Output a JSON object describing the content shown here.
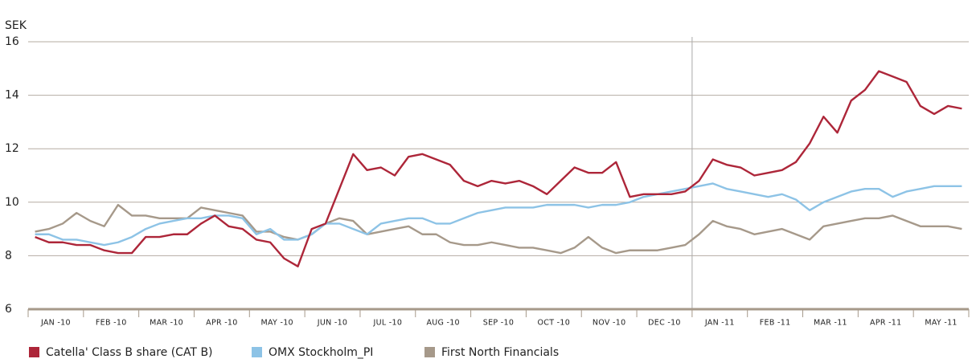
{
  "chart_data": {
    "type": "line",
    "y_label": "SEK",
    "categories": [
      null,
      "JAN -10",
      null,
      null,
      null,
      "FEB -10",
      null,
      null,
      null,
      "MAR -10",
      null,
      null,
      null,
      "APR -10",
      null,
      null,
      null,
      "MAY -10",
      null,
      null,
      null,
      "JUN -10",
      null,
      null,
      null,
      "JUL -10",
      null,
      null,
      null,
      "AUG -10",
      null,
      null,
      null,
      "SEP -10",
      null,
      null,
      null,
      "OCT -10",
      null,
      null,
      null,
      "NOV -10",
      null,
      null,
      null,
      "DEC -10",
      null,
      null,
      null,
      "JAN -11",
      null,
      null,
      null,
      "FEB -11",
      null,
      null,
      null,
      "MAR -11",
      null,
      null,
      null,
      "APR -11",
      null,
      null,
      null,
      "MAY -11",
      null,
      null
    ],
    "series": [
      {
        "name": "Catella' Class B share (CAT B)",
        "color": "#ad2639",
        "values": [
          8.7,
          8.5,
          8.5,
          8.4,
          8.4,
          8.2,
          8.1,
          8.1,
          8.7,
          8.7,
          8.8,
          8.8,
          9.2,
          9.5,
          9.1,
          9.0,
          8.6,
          8.5,
          7.9,
          7.6,
          9.0,
          9.2,
          10.5,
          11.8,
          11.2,
          11.3,
          11.0,
          11.7,
          11.8,
          11.6,
          11.4,
          10.8,
          10.6,
          10.8,
          10.7,
          10.8,
          10.6,
          10.3,
          10.8,
          11.3,
          11.1,
          11.1,
          11.5,
          10.2,
          10.3,
          10.3,
          10.3,
          10.4,
          10.8,
          11.6,
          11.4,
          11.3,
          11.0,
          11.1,
          11.2,
          11.5,
          12.2,
          13.2,
          12.6,
          13.8,
          14.2,
          14.9,
          14.7,
          14.5,
          13.6,
          13.3,
          13.6,
          13.5
        ]
      },
      {
        "name": "OMX Stockholm_PI",
        "color": "#8dc3e6",
        "values": [
          8.8,
          8.8,
          8.6,
          8.6,
          8.5,
          8.4,
          8.5,
          8.7,
          9.0,
          9.2,
          9.3,
          9.4,
          9.4,
          9.5,
          9.5,
          9.4,
          8.8,
          9.0,
          8.6,
          8.6,
          8.8,
          9.2,
          9.2,
          9.0,
          8.8,
          9.2,
          9.3,
          9.4,
          9.4,
          9.2,
          9.2,
          9.4,
          9.6,
          9.7,
          9.8,
          9.8,
          9.8,
          9.9,
          9.9,
          9.9,
          9.8,
          9.9,
          9.9,
          10.0,
          10.2,
          10.3,
          10.4,
          10.5,
          10.6,
          10.7,
          10.5,
          10.4,
          10.3,
          10.2,
          10.3,
          10.1,
          9.7,
          10.0,
          10.2,
          10.4,
          10.5,
          10.5,
          10.2,
          10.4,
          10.5,
          10.6,
          10.6,
          10.6
        ]
      },
      {
        "name": "First North Financials",
        "color": "#a6998a",
        "values": [
          8.9,
          9.0,
          9.2,
          9.6,
          9.3,
          9.1,
          9.9,
          9.5,
          9.5,
          9.4,
          9.4,
          9.4,
          9.8,
          9.7,
          9.6,
          9.5,
          8.9,
          8.9,
          8.7,
          8.6,
          8.8,
          9.2,
          9.4,
          9.3,
          8.8,
          8.9,
          9.0,
          9.1,
          8.8,
          8.8,
          8.5,
          8.4,
          8.4,
          8.5,
          8.4,
          8.3,
          8.3,
          8.2,
          8.1,
          8.3,
          8.7,
          8.3,
          8.1,
          8.2,
          8.2,
          8.2,
          8.3,
          8.4,
          8.8,
          9.3,
          9.1,
          9.0,
          8.8,
          8.9,
          9.0,
          8.8,
          8.6,
          9.1,
          9.2,
          9.3,
          9.4,
          9.4,
          9.5,
          9.3,
          9.1,
          9.1,
          9.1,
          9.0
        ]
      }
    ],
    "ylim": [
      6,
      16
    ],
    "yticks": [
      6,
      8,
      10,
      12,
      14,
      16
    ],
    "grid": true
  }
}
